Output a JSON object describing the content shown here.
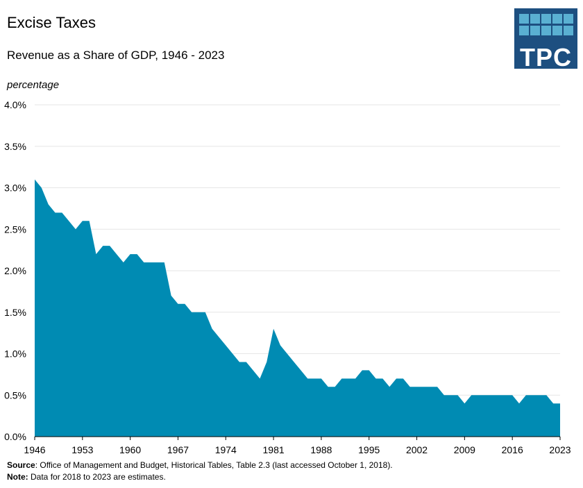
{
  "header": {
    "title": "Excise Taxes",
    "subtitle": "Revenue as a Share of GDP, 1946 - 2023",
    "y_unit_label": "percentage"
  },
  "logo": {
    "text": "TPC"
  },
  "colors": {
    "area": "#008bb3",
    "grid": "#e6e6e6",
    "logo_bg": "#1d4f80",
    "logo_squares": "#5ab0d2"
  },
  "footer": {
    "source_label": "Source",
    "source_text": ": Office of Management and Budget, Historical Tables, Table 2.3 (last accessed October 1, 2018).",
    "note_label": "Note:",
    "note_text": " Data for 2018 to 2023 are estimates."
  },
  "chart_data": {
    "type": "area",
    "title": "Excise Taxes",
    "subtitle": "Revenue as a Share of GDP, 1946 - 2023",
    "ylabel": "percentage",
    "xlabel": "",
    "ylim": [
      0,
      4
    ],
    "xlim": [
      1946,
      2023
    ],
    "y_ticks": [
      "0.0%",
      "0.5%",
      "1.0%",
      "1.5%",
      "2.0%",
      "2.5%",
      "3.0%",
      "3.5%",
      "4.0%"
    ],
    "x_ticks": [
      "1946",
      "1953",
      "1960",
      "1967",
      "1974",
      "1981",
      "1988",
      "1995",
      "2002",
      "2009",
      "2016",
      "2023"
    ],
    "grid": true,
    "x": [
      1946,
      1947,
      1948,
      1949,
      1950,
      1951,
      1952,
      1953,
      1954,
      1955,
      1956,
      1957,
      1958,
      1959,
      1960,
      1961,
      1962,
      1963,
      1964,
      1965,
      1966,
      1967,
      1968,
      1969,
      1970,
      1971,
      1972,
      1973,
      1974,
      1975,
      1976,
      1977,
      1978,
      1979,
      1980,
      1981,
      1982,
      1983,
      1984,
      1985,
      1986,
      1987,
      1988,
      1989,
      1990,
      1991,
      1992,
      1993,
      1994,
      1995,
      1996,
      1997,
      1998,
      1999,
      2000,
      2001,
      2002,
      2003,
      2004,
      2005,
      2006,
      2007,
      2008,
      2009,
      2010,
      2011,
      2012,
      2013,
      2014,
      2015,
      2016,
      2017,
      2018,
      2019,
      2020,
      2021,
      2022,
      2023
    ],
    "series": [
      {
        "values": [
          3.1,
          3.0,
          2.8,
          2.7,
          2.7,
          2.6,
          2.5,
          2.6,
          2.6,
          2.2,
          2.3,
          2.3,
          2.2,
          2.1,
          2.2,
          2.2,
          2.1,
          2.1,
          2.1,
          2.1,
          1.7,
          1.6,
          1.6,
          1.5,
          1.5,
          1.5,
          1.3,
          1.2,
          1.1,
          1.0,
          0.9,
          0.9,
          0.8,
          0.7,
          0.9,
          1.3,
          1.1,
          1.0,
          0.9,
          0.8,
          0.7,
          0.7,
          0.7,
          0.6,
          0.6,
          0.7,
          0.7,
          0.7,
          0.8,
          0.8,
          0.7,
          0.7,
          0.6,
          0.7,
          0.7,
          0.6,
          0.6,
          0.6,
          0.6,
          0.6,
          0.5,
          0.5,
          0.5,
          0.4,
          0.5,
          0.5,
          0.5,
          0.5,
          0.5,
          0.5,
          0.5,
          0.4,
          0.5,
          0.5,
          0.5,
          0.5,
          0.4,
          0.4
        ]
      }
    ]
  }
}
